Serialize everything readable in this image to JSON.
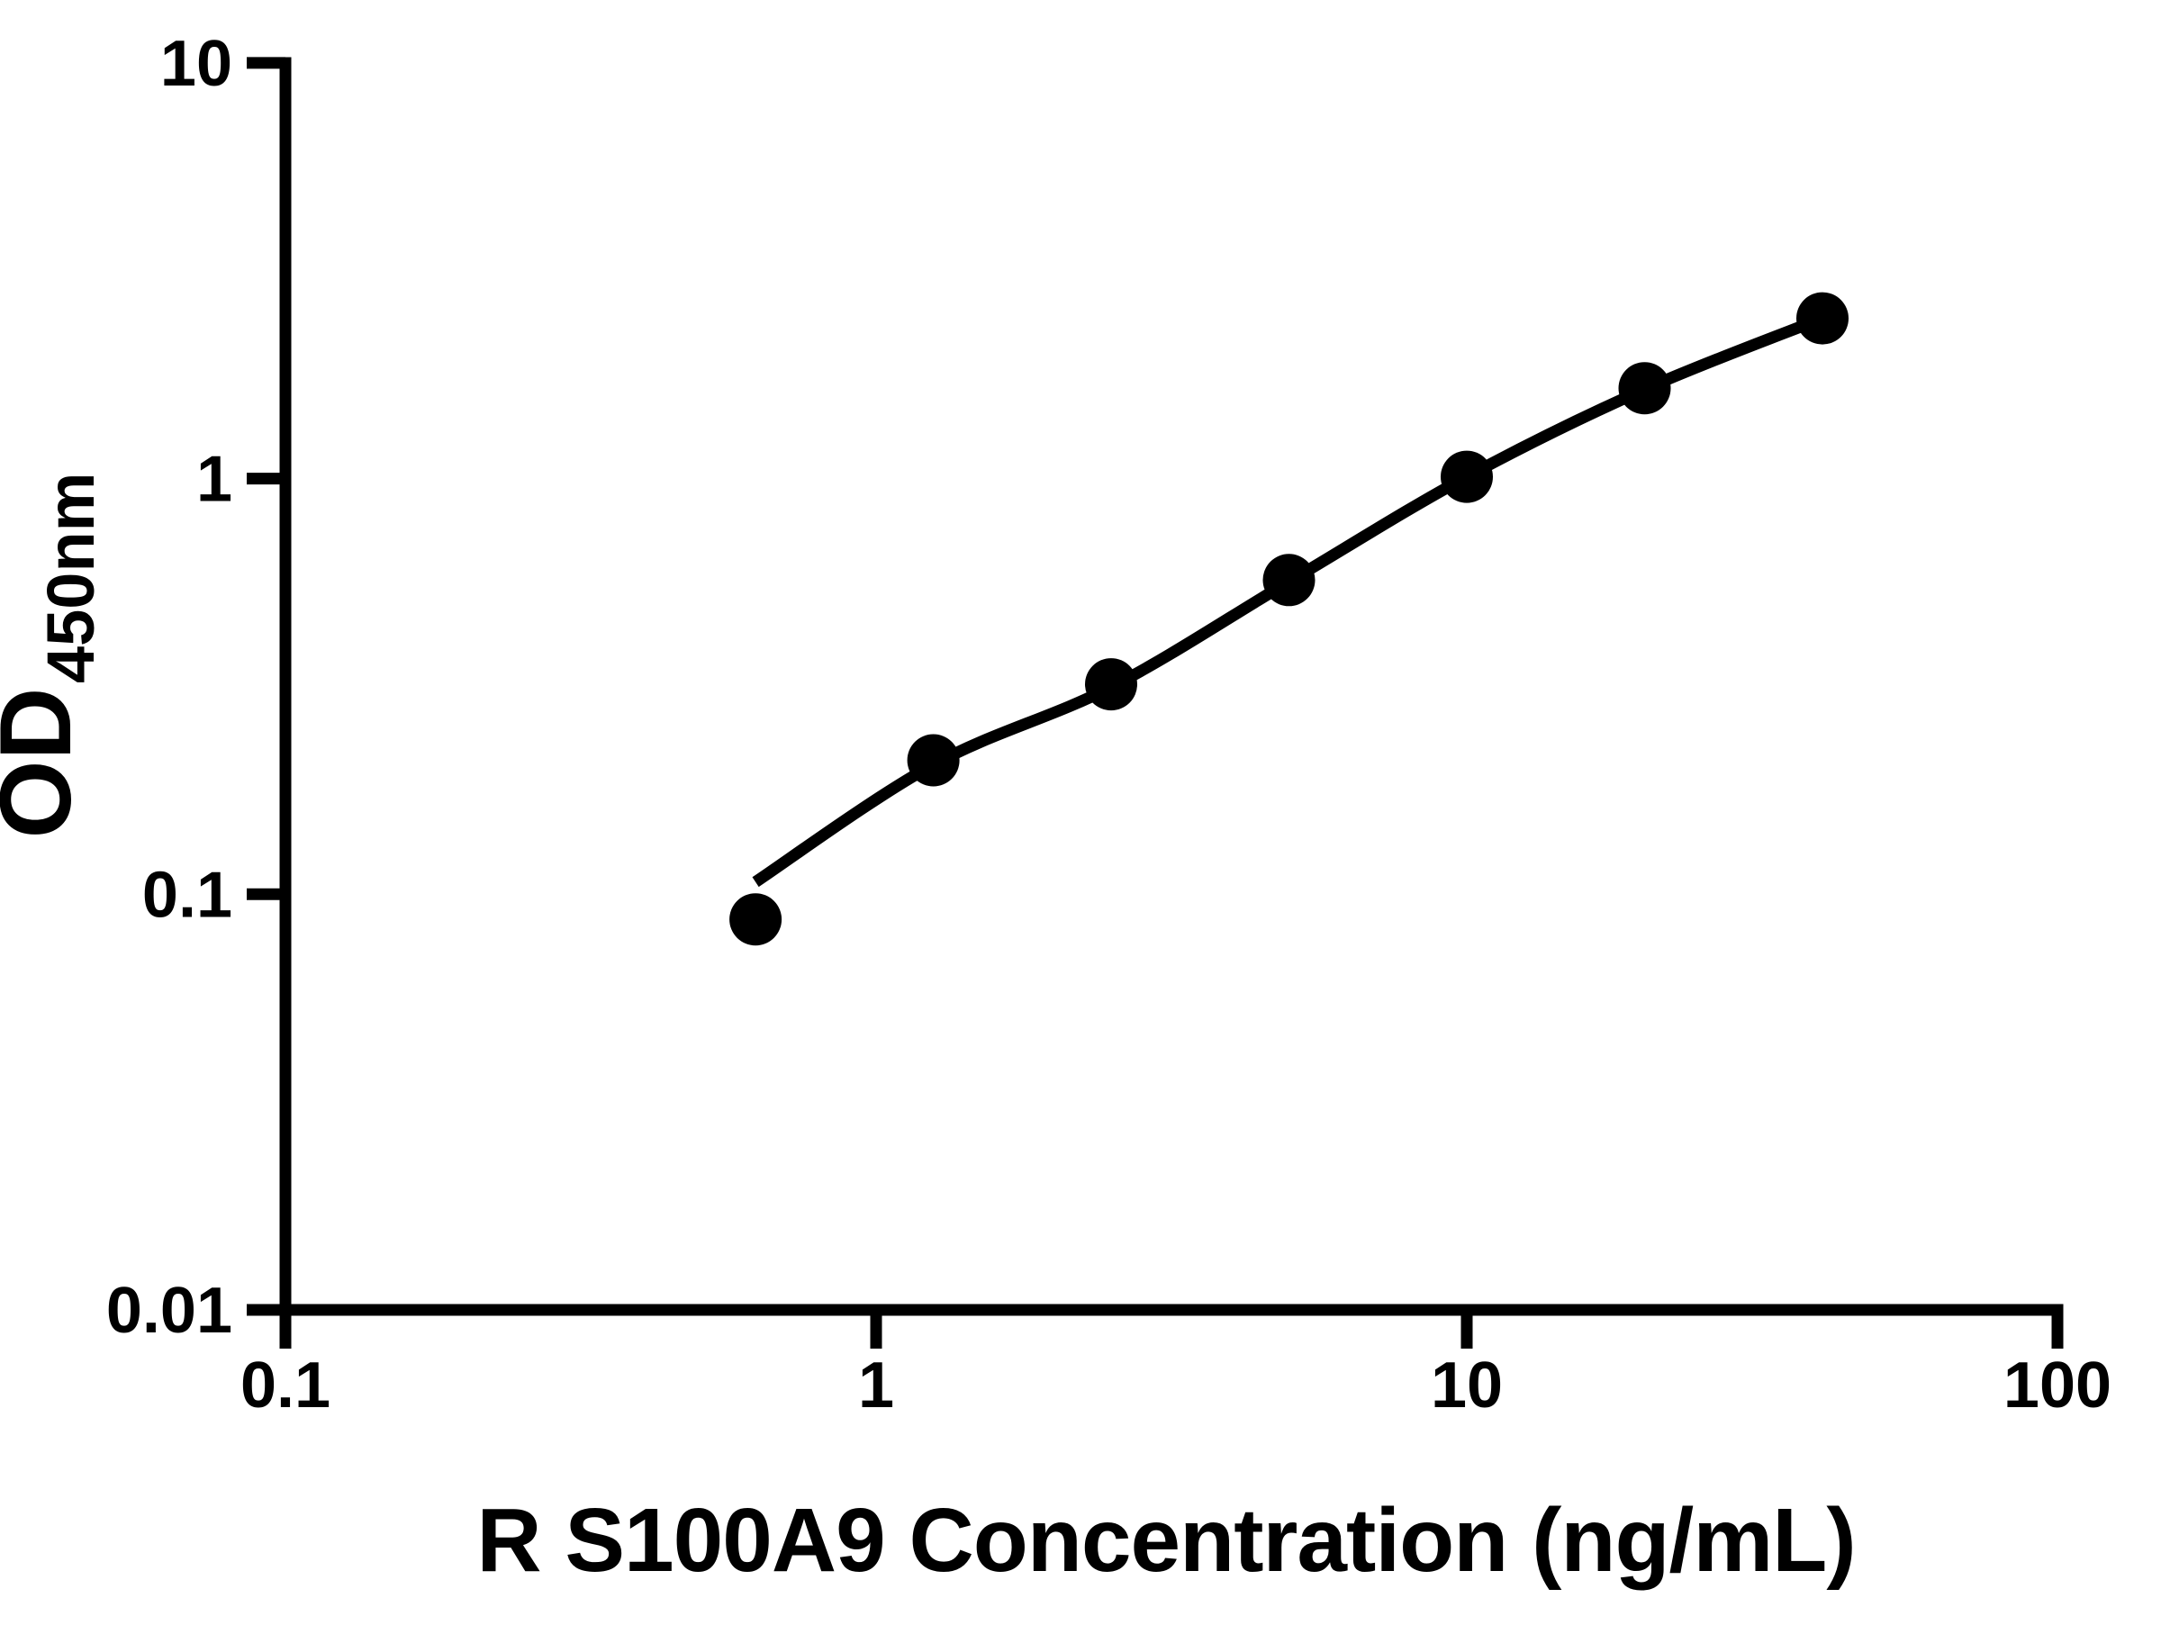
{
  "page": {
    "background": "#ffffff",
    "ink_color": "#000000"
  },
  "chart_data": {
    "type": "scatter",
    "title": "",
    "xlabel": "R S100A9 Concentration (ng/mL)",
    "ylabel": "OD450nm",
    "ylabel_main": "OD",
    "ylabel_sub": "450nm",
    "x_scale": "log",
    "y_scale": "log",
    "xlim": [
      0.1,
      100
    ],
    "ylim": [
      0.01,
      10
    ],
    "grid": false,
    "legend_position": "none",
    "x_ticks": [
      {
        "value": 0.1,
        "label": "0.1"
      },
      {
        "value": 1,
        "label": "1"
      },
      {
        "value": 10,
        "label": "10"
      },
      {
        "value": 100,
        "label": "100"
      }
    ],
    "y_ticks": [
      {
        "value": 0.01,
        "label": "0.01"
      },
      {
        "value": 0.1,
        "label": "0.1"
      },
      {
        "value": 1,
        "label": "1"
      },
      {
        "value": 10,
        "label": "10"
      }
    ],
    "series": [
      {
        "marker": "filled-circle",
        "color": "#000000",
        "points": [
          {
            "x": 0.625,
            "y": 0.087
          },
          {
            "x": 1.25,
            "y": 0.21
          },
          {
            "x": 2.5,
            "y": 0.32
          },
          {
            "x": 5,
            "y": 0.57
          },
          {
            "x": 10,
            "y": 1.01
          },
          {
            "x": 20,
            "y": 1.65
          },
          {
            "x": 40,
            "y": 2.43
          }
        ]
      }
    ],
    "fit_curve": {
      "color": "#000000",
      "points": [
        [
          0.625,
          0.107
        ],
        [
          1.25,
          0.205
        ],
        [
          2.5,
          0.315
        ],
        [
          5,
          0.565
        ],
        [
          10,
          1.01
        ],
        [
          20,
          1.64
        ],
        [
          40,
          2.43
        ]
      ]
    }
  }
}
